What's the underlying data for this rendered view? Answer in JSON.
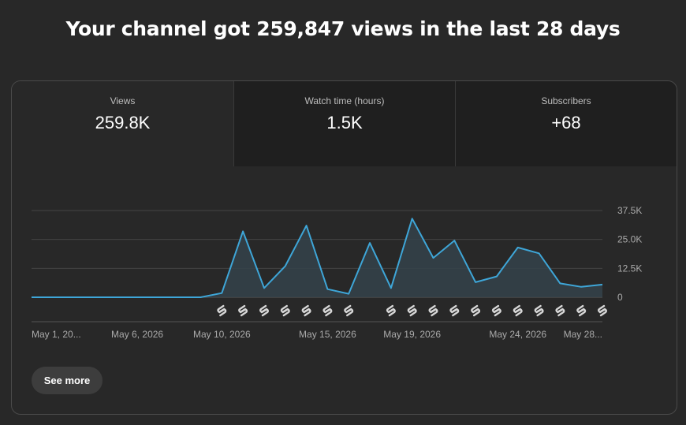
{
  "headline": "Your channel got 259,847 views in the last 28 days",
  "tabs": [
    {
      "label": "Views",
      "value": "259.8K"
    },
    {
      "label": "Watch time (hours)",
      "value": "1.5K"
    },
    {
      "label": "Subscribers",
      "value": "+68"
    }
  ],
  "see_more": "See more",
  "colors": {
    "line": "#3ea6d8",
    "area": "#34424a",
    "grid": "#444444",
    "text": "#aaaaaa",
    "marker": "#d7d7d7"
  },
  "chart_data": {
    "type": "area",
    "x": [
      "May 1, 2026",
      "May 2, 2026",
      "May 3, 2026",
      "May 4, 2026",
      "May 5, 2026",
      "May 6, 2026",
      "May 7, 2026",
      "May 8, 2026",
      "May 9, 2026",
      "May 10, 2026",
      "May 11, 2026",
      "May 12, 2026",
      "May 13, 2026",
      "May 14, 2026",
      "May 15, 2026",
      "May 16, 2026",
      "May 17, 2026",
      "May 18, 2026",
      "May 19, 2026",
      "May 20, 2026",
      "May 21, 2026",
      "May 22, 2026",
      "May 23, 2026",
      "May 24, 2026",
      "May 25, 2026",
      "May 26, 2026",
      "May 27, 2026",
      "May 28, 2026"
    ],
    "series": [
      {
        "values": [
          0,
          0,
          0,
          0,
          0,
          0,
          0,
          0,
          0,
          1800,
          28500,
          4000,
          13500,
          31000,
          3500,
          1500,
          23500,
          4000,
          34000,
          17000,
          24500,
          6500,
          9000,
          21500,
          19000,
          6000,
          4500,
          5500
        ]
      }
    ],
    "x_tick_labels": [
      "May 1, 20...",
      "May 6, 2026",
      "May 10, 2026",
      "May 15, 2026",
      "May 19, 2026",
      "May 24, 2026",
      "May 28..."
    ],
    "x_tick_index": [
      0,
      5,
      9,
      14,
      18,
      23,
      27
    ],
    "y_tick_labels": [
      "0",
      "12.5K",
      "25.0K",
      "37.5K"
    ],
    "y_ticks": [
      0,
      12500,
      25000,
      37500
    ],
    "ylim": [
      0,
      37500
    ],
    "shorts_marker_index": [
      9,
      10,
      11,
      12,
      13,
      14,
      15,
      17,
      18,
      19,
      20,
      21,
      22,
      23,
      24,
      25,
      26,
      27
    ],
    "grid": true
  }
}
